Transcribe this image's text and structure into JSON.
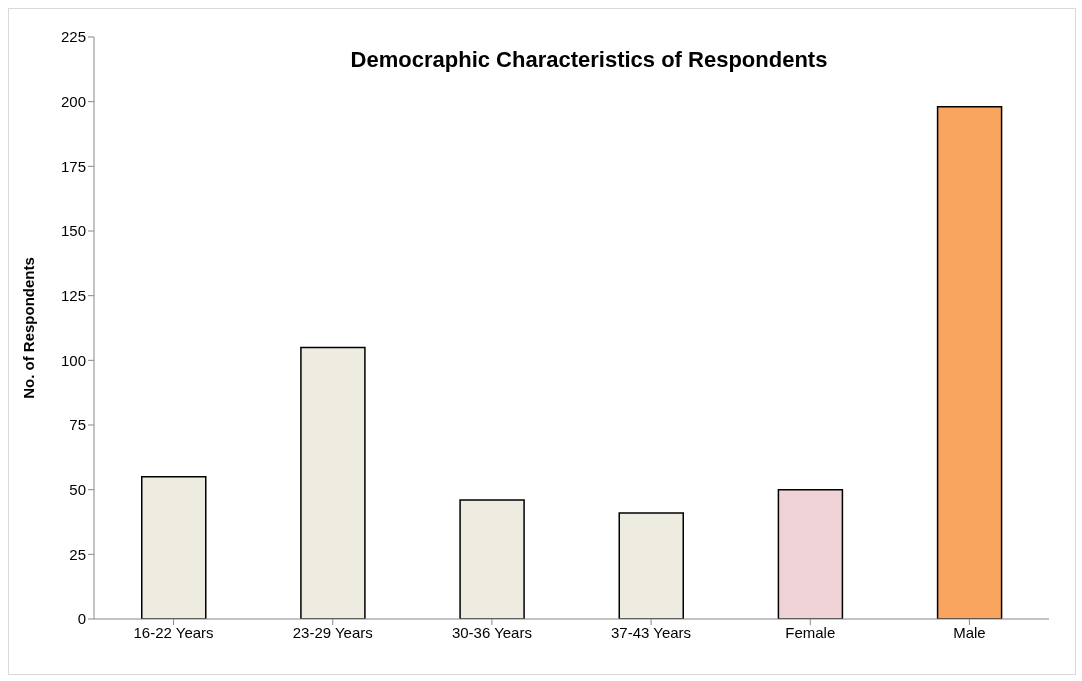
{
  "chart_data": {
    "type": "bar",
    "title": "Democraphic Characteristics of Respondents",
    "ylabel": "No. of Respondents",
    "categories": [
      "16-22 Years",
      "23-29 Years",
      "30-36 Years",
      "37-43 Years",
      "Female",
      "Male"
    ],
    "values": [
      55,
      105,
      46,
      41,
      50,
      198
    ],
    "colors": [
      "#eeebe0",
      "#eeebe0",
      "#eeebe0",
      "#eeebe0",
      "#efd3d7",
      "#f9a55f"
    ],
    "ylim": [
      0,
      225
    ],
    "yticks": [
      0,
      25,
      50,
      75,
      100,
      125,
      150,
      175,
      200,
      225
    ],
    "grid": false,
    "legend": false
  }
}
